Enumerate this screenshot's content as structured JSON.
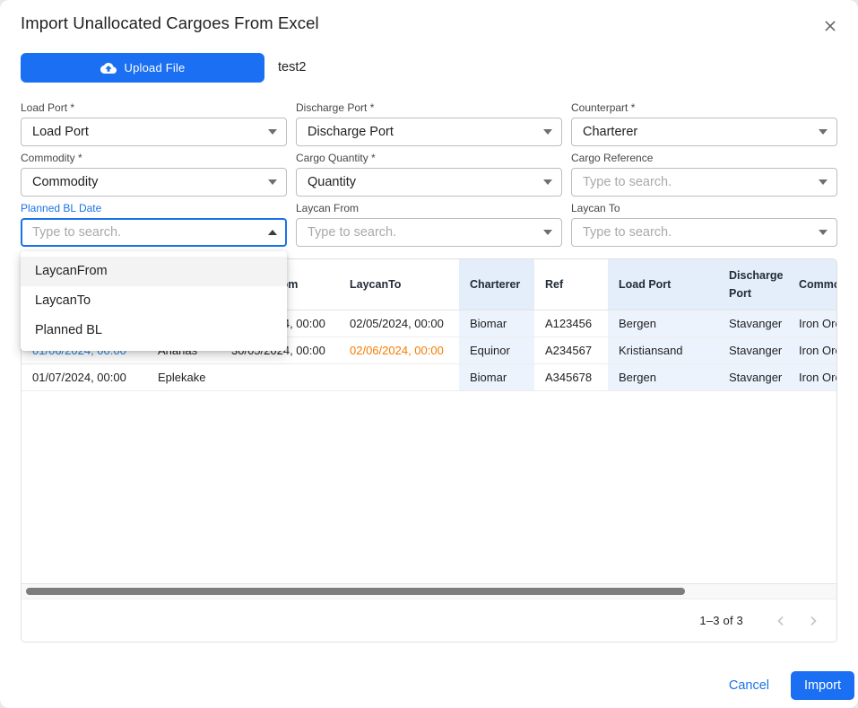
{
  "dialog": {
    "title": "Import Unallocated Cargoes From Excel"
  },
  "upload": {
    "button_label": "Upload File",
    "file_name": "test2"
  },
  "form": {
    "load_port": {
      "label": "Load Port *",
      "value": "Load Port"
    },
    "discharge_port": {
      "label": "Discharge Port *",
      "value": "Discharge Port"
    },
    "counterpart": {
      "label": "Counterpart *",
      "value": "Charterer"
    },
    "commodity": {
      "label": "Commodity *",
      "value": "Commodity"
    },
    "cargo_quantity": {
      "label": "Cargo Quantity *",
      "value": "Quantity"
    },
    "cargo_reference": {
      "label": "Cargo Reference",
      "placeholder": "Type to search."
    },
    "planned_bl_date": {
      "label": "Planned BL Date",
      "placeholder": "Type to search."
    },
    "laycan_from": {
      "label": "Laycan From",
      "placeholder": "Type to search."
    },
    "laycan_to": {
      "label": "Laycan To",
      "placeholder": "Type to search."
    }
  },
  "autocomplete_menu": {
    "options": [
      "LaycanFrom",
      "LaycanTo",
      "Planned BL"
    ],
    "highlighted_option": "LaycanFrom"
  },
  "table": {
    "columns": [
      {
        "label": "",
        "highlight": false
      },
      {
        "label": "",
        "highlight": false
      },
      {
        "label": "LaycanFrom",
        "highlight": false
      },
      {
        "label": "LaycanTo",
        "highlight": false
      },
      {
        "label": "Charterer",
        "highlight": true
      },
      {
        "label": "Ref",
        "highlight": false
      },
      {
        "label": "Load Port",
        "highlight": true
      },
      {
        "label": "Discharge Port",
        "highlight": true
      },
      {
        "label": "Commodity",
        "highlight": true
      }
    ],
    "rows": [
      {
        "cells": [
          "",
          "",
          "30/04/2024, 00:00",
          "02/05/2024, 00:00",
          "Biomar",
          "A123456",
          "Bergen",
          "Stavanger",
          "Iron Ore"
        ],
        "styles": [
          "",
          "",
          "",
          "",
          "",
          "",
          "",
          "",
          ""
        ]
      },
      {
        "cells": [
          "01/06/2024, 00:00",
          "Ananas",
          "30/05/2024, 00:00",
          "02/06/2024, 00:00",
          "Equinor",
          "A234567",
          "Kristiansand",
          "Stavanger",
          "Iron Ore"
        ],
        "styles": [
          "link",
          "",
          "",
          "warning",
          "",
          "",
          "",
          "",
          ""
        ]
      },
      {
        "cells": [
          "01/07/2024, 00:00",
          "Eplekake",
          "",
          "",
          "Biomar",
          "A345678",
          "Bergen",
          "Stavanger",
          "Iron Ore"
        ],
        "styles": [
          "",
          "",
          "",
          "",
          "",
          "",
          "",
          "",
          ""
        ]
      }
    ]
  },
  "pagination": {
    "range_label": "1–3 of 3"
  },
  "actions": {
    "cancel_label": "Cancel",
    "import_label": "Import"
  },
  "colors": {
    "accent_blue": "#1a6ff2",
    "focus_blue": "#1a73e8",
    "link_blue": "#1e88e5",
    "warning_orange": "#f57c00",
    "header_highlight": "#e4edfa",
    "cell_highlight": "#edf3fc"
  }
}
